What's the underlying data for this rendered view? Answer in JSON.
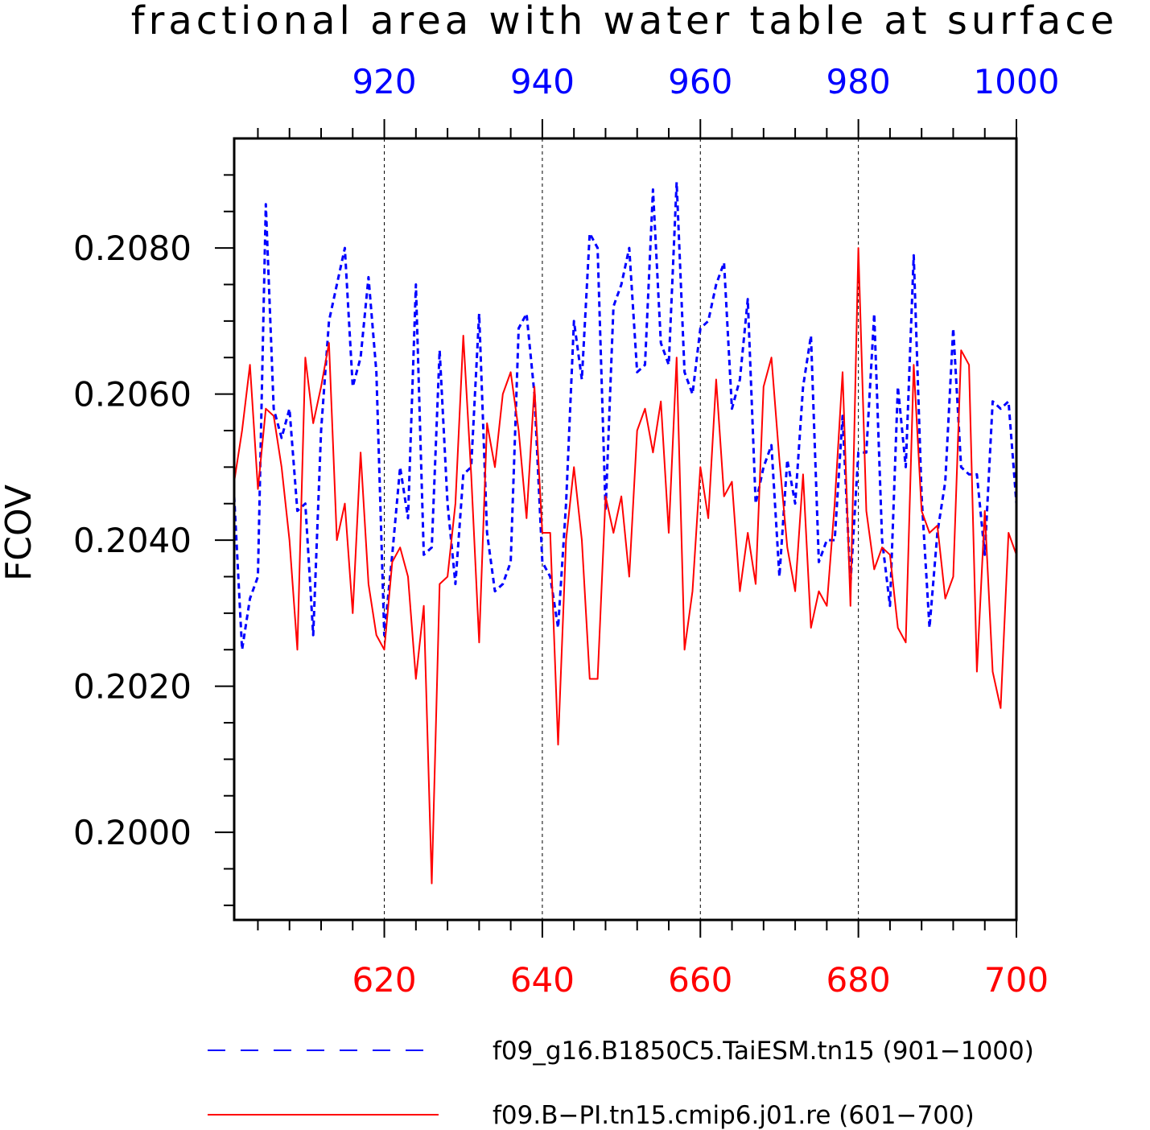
{
  "chart_data": {
    "type": "line",
    "title": "fractional area with water table at surface",
    "ylabel": "FCOV",
    "ylim": [
      0.1988,
      0.2095
    ],
    "yticks": [
      0.2,
      0.202,
      0.204,
      0.206,
      0.208
    ],
    "ytick_labels": [
      "0.2000",
      "0.2020",
      "0.2040",
      "0.2060",
      "0.2080"
    ],
    "grid": "vertical dashed at major top/bottom ticks",
    "bottom_axis": {
      "color": "#ff0000",
      "range": [
        601,
        700
      ],
      "ticks": [
        620,
        640,
        660,
        680,
        700
      ],
      "tick_labels": [
        "620",
        "640",
        "660",
        "680",
        "700"
      ]
    },
    "top_axis": {
      "color": "#0000ff",
      "range": [
        901,
        1000
      ],
      "ticks": [
        920,
        940,
        960,
        980,
        1000
      ],
      "tick_labels": [
        "920",
        "940",
        "960",
        "980",
        "1000"
      ]
    },
    "legend_position": "bottom",
    "series": [
      {
        "name": "f09_g16.B1850C5.TaiESM.tn15 (901−1000)",
        "color": "#0000ff",
        "dash": "dashed",
        "x_start": 901,
        "values": [
          0.2046,
          0.2025,
          0.2032,
          0.2035,
          0.2086,
          0.2058,
          0.2054,
          0.2058,
          0.2044,
          0.2045,
          0.2027,
          0.2055,
          0.207,
          0.2075,
          0.208,
          0.2061,
          0.2065,
          0.2076,
          0.2063,
          0.2027,
          0.2038,
          0.205,
          0.2043,
          0.2075,
          0.2038,
          0.2039,
          0.2066,
          0.2045,
          0.2034,
          0.2049,
          0.205,
          0.2071,
          0.2041,
          0.2033,
          0.2034,
          0.2037,
          0.2069,
          0.2071,
          0.206,
          0.2037,
          0.2035,
          0.2028,
          0.2045,
          0.207,
          0.2062,
          0.2082,
          0.208,
          0.2044,
          0.2072,
          0.2075,
          0.208,
          0.2063,
          0.2064,
          0.2088,
          0.2067,
          0.2064,
          0.2089,
          0.2063,
          0.206,
          0.2069,
          0.207,
          0.2075,
          0.2078,
          0.2058,
          0.2062,
          0.2073,
          0.2045,
          0.205,
          0.2053,
          0.2035,
          0.2051,
          0.2045,
          0.2061,
          0.2068,
          0.2037,
          0.204,
          0.204,
          0.2057,
          0.2034,
          0.2052,
          0.2052,
          0.2071,
          0.204,
          0.2031,
          0.2061,
          0.205,
          0.2079,
          0.2046,
          0.2028,
          0.2041,
          0.2048,
          0.2069,
          0.205,
          0.2049,
          0.2049,
          0.2038,
          0.2059,
          0.2058,
          0.2059,
          0.2045
        ]
      },
      {
        "name": "f09.B−PI.tn15.cmip6.j01.re (601−700)",
        "color": "#ff0000",
        "dash": "solid",
        "x_start": 601,
        "values": [
          0.2048,
          0.2055,
          0.2064,
          0.2047,
          0.2058,
          0.2057,
          0.205,
          0.204,
          0.2025,
          0.2065,
          0.2056,
          0.2061,
          0.2067,
          0.204,
          0.2045,
          0.203,
          0.2052,
          0.2034,
          0.2027,
          0.2025,
          0.2037,
          0.2039,
          0.2035,
          0.2021,
          0.2031,
          0.1993,
          0.2034,
          0.2035,
          0.2045,
          0.2068,
          0.2049,
          0.2026,
          0.2056,
          0.205,
          0.206,
          0.2063,
          0.2055,
          0.2043,
          0.2061,
          0.2041,
          0.2041,
          0.2012,
          0.204,
          0.205,
          0.204,
          0.2021,
          0.2021,
          0.2046,
          0.2041,
          0.2046,
          0.2035,
          0.2055,
          0.2058,
          0.2052,
          0.2059,
          0.2041,
          0.2065,
          0.2025,
          0.2033,
          0.205,
          0.2043,
          0.2062,
          0.2046,
          0.2048,
          0.2033,
          0.2041,
          0.2034,
          0.2061,
          0.2065,
          0.2051,
          0.2039,
          0.2033,
          0.2049,
          0.2028,
          0.2033,
          0.2031,
          0.2045,
          0.2063,
          0.2031,
          0.208,
          0.2044,
          0.2036,
          0.2039,
          0.2038,
          0.2028,
          0.2026,
          0.2064,
          0.2044,
          0.2041,
          0.2042,
          0.2032,
          0.2035,
          0.2066,
          0.2064,
          0.2022,
          0.2044,
          0.2022,
          0.2017,
          0.2041,
          0.2038
        ]
      }
    ]
  }
}
